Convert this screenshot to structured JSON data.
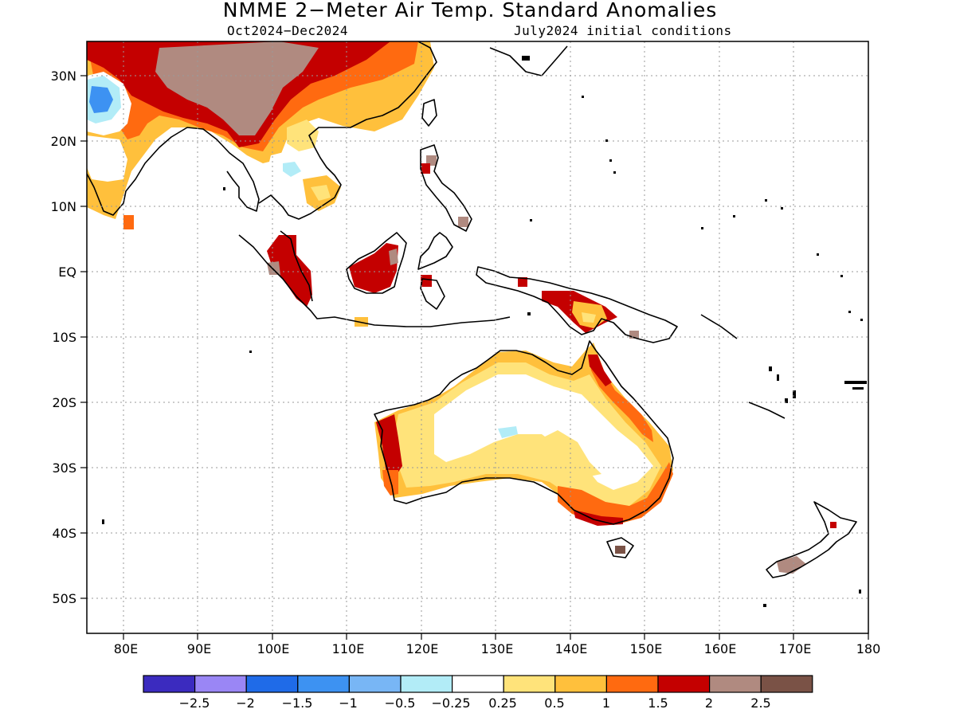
{
  "header": {
    "title": "NMME 2−Meter Air Temp. Standard Anomalies",
    "period": "Oct2024−Dec2024",
    "init": "July2024 initial conditions"
  },
  "axes": {
    "x_ticks": [
      "80E",
      "90E",
      "100E",
      "110E",
      "120E",
      "130E",
      "140E",
      "150E",
      "160E",
      "170E",
      "180"
    ],
    "y_ticks": [
      "30N",
      "20N",
      "10N",
      "EQ",
      "10S",
      "20S",
      "30S",
      "40S",
      "50S"
    ]
  },
  "colorbar": {
    "colors": [
      "#3b2bbf",
      "#9a86f5",
      "#1f6be8",
      "#3d92f2",
      "#78b6f5",
      "#b2ecf7",
      "#ffffff",
      "#ffe37a",
      "#ffc03c",
      "#ff6a10",
      "#c40000",
      "#b08a80",
      "#7a5246"
    ],
    "labels": [
      "−2.5",
      "−2",
      "−1.5",
      "−1",
      "−0.5",
      "−0.25",
      "0.25",
      "0.5",
      "1",
      "1.5",
      "2",
      "2.5"
    ]
  }
}
